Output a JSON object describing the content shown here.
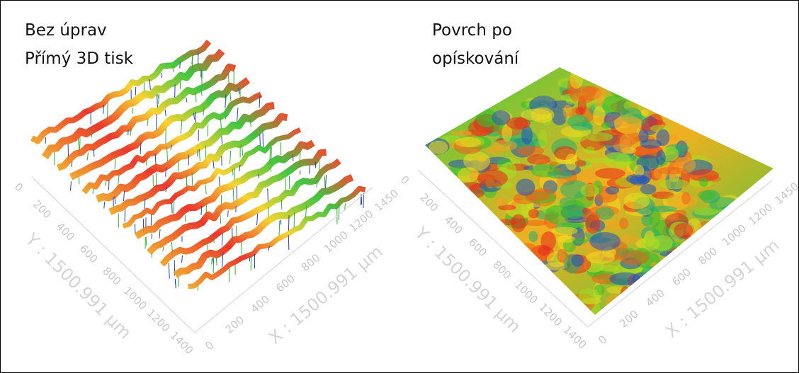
{
  "panels": [
    {
      "title_lines": [
        "Bez úprav",
        "Přímý 3D tisk"
      ],
      "y_axis_label": "Y : 1500.991 µm",
      "x_axis_label": "X : 1500.991 µm",
      "y_ticks": [
        0,
        200,
        400,
        600,
        800,
        1000,
        1200,
        1400
      ],
      "x_ticks": [
        0,
        200,
        400,
        600,
        800,
        1000,
        1200,
        1450
      ]
    },
    {
      "title_lines": [
        "Povrch po",
        "opískování"
      ],
      "y_axis_label": "Y : 1500.991 µm",
      "x_axis_label": "X : 1500.991 µm",
      "y_ticks": [
        0,
        200,
        400,
        600,
        800,
        1000,
        1200,
        1400
      ],
      "x_ticks": [
        0,
        200,
        400,
        600,
        800,
        1000,
        1200,
        1450
      ]
    }
  ]
}
